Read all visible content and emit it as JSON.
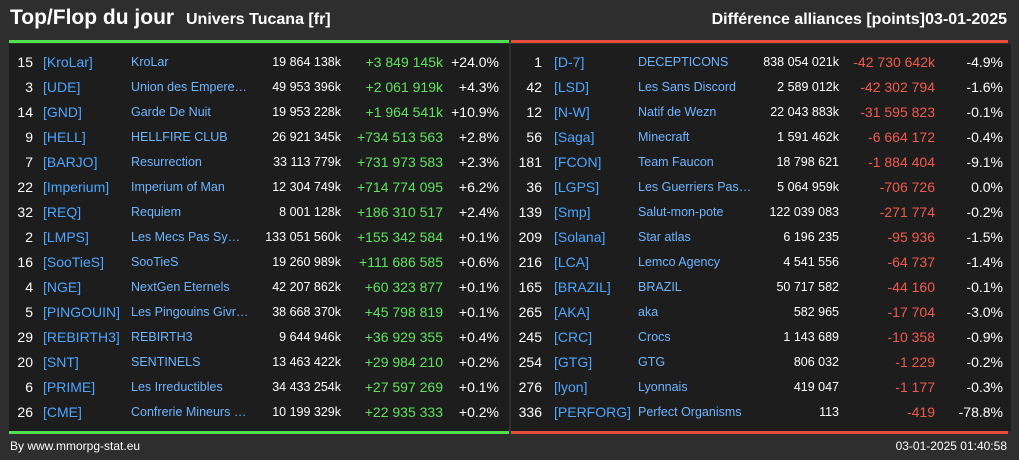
{
  "header": {
    "title": "Top/Flop du jour",
    "universe": "Univers Tucana [fr]",
    "section_title": "Différence alliances [points]",
    "date": "03-01-2025"
  },
  "colors": {
    "positive": "#5fe35f",
    "negative": "#f05a4d",
    "tag": "#4da6ff",
    "top_rule": "#4ee04e",
    "flop_rule": "#e84c3d"
  },
  "top": [
    {
      "rank": "15",
      "tag": "[KroLar]",
      "name": "KroLar",
      "points": "19 864 138k",
      "diff": "+3 849 145k",
      "pct": "+24.0%"
    },
    {
      "rank": "3",
      "tag": "[UDE]",
      "name": "Union des Empereurs",
      "points": "49 953 396k",
      "diff": "+2 061 919k",
      "pct": "+4.3%"
    },
    {
      "rank": "14",
      "tag": "[GND]",
      "name": "Garde De Nuit",
      "points": "19 953 228k",
      "diff": "+1 964 541k",
      "pct": "+10.9%"
    },
    {
      "rank": "9",
      "tag": "[HELL]",
      "name": "HELLFIRE CLUB",
      "points": "26 921 345k",
      "diff": "+734 513 563",
      "pct": "+2.8%"
    },
    {
      "rank": "7",
      "tag": "[BARJO]",
      "name": "Resurrection",
      "points": "33 113 779k",
      "diff": "+731 973 583",
      "pct": "+2.3%"
    },
    {
      "rank": "22",
      "tag": "[Imperium]",
      "name": "Imperium of Man",
      "points": "12 304 749k",
      "diff": "+714 774 095",
      "pct": "+6.2%"
    },
    {
      "rank": "32",
      "tag": "[REQ]",
      "name": "Requiem",
      "points": "8 001 128k",
      "diff": "+186 310 517",
      "pct": "+2.4%"
    },
    {
      "rank": "2",
      "tag": "[LMPS]",
      "name": "Les Mecs Pas Sympas",
      "points": "133 051 560k",
      "diff": "+155 342 584",
      "pct": "+0.1%"
    },
    {
      "rank": "16",
      "tag": "[SooTieS]",
      "name": "SooTieS",
      "points": "19 260 989k",
      "diff": "+111 686 585",
      "pct": "+0.6%"
    },
    {
      "rank": "4",
      "tag": "[NGE]",
      "name": "NextGen Eternels",
      "points": "42 207 862k",
      "diff": "+60 323 877",
      "pct": "+0.1%"
    },
    {
      "rank": "5",
      "tag": "[PINGOUIN]",
      "name": "Les Pingouins Givrés",
      "points": "38 668 370k",
      "diff": "+45 798 819",
      "pct": "+0.1%"
    },
    {
      "rank": "29",
      "tag": "[REBIRTH3]",
      "name": "REBIRTH3",
      "points": "9 644 946k",
      "diff": "+36 929 355",
      "pct": "+0.4%"
    },
    {
      "rank": "20",
      "tag": "[SNT]",
      "name": "SENTINELS",
      "points": "13 463 422k",
      "diff": "+29 984 210",
      "pct": "+0.2%"
    },
    {
      "rank": "6",
      "tag": "[PRIME]",
      "name": "Les Irreductibles",
      "points": "34 433 254k",
      "diff": "+27 597 269",
      "pct": "+0.1%"
    },
    {
      "rank": "26",
      "tag": "[CME]",
      "name": "Confrerie Mineurs Elite",
      "points": "10 199 329k",
      "diff": "+22 935 333",
      "pct": "+0.2%"
    }
  ],
  "flop": [
    {
      "rank": "1",
      "tag": "[D-7]",
      "name": "DECEPTICONS",
      "points": "838 054 021k",
      "diff": "-42 730 642k",
      "pct": "-4.9%"
    },
    {
      "rank": "42",
      "tag": "[LSD]",
      "name": "Les Sans Discord",
      "points": "2 589 012k",
      "diff": "-42 302 794",
      "pct": "-1.6%"
    },
    {
      "rank": "12",
      "tag": "[N-W]",
      "name": "Natif de Wezn",
      "points": "22 043 883k",
      "diff": "-31 595 823",
      "pct": "-0.1%"
    },
    {
      "rank": "56",
      "tag": "[Saga]",
      "name": "Minecraft",
      "points": "1 591 462k",
      "diff": "-6 664 172",
      "pct": "-0.4%"
    },
    {
      "rank": "181",
      "tag": "[FCON]",
      "name": "Team Faucon",
      "points": "18 798 621",
      "diff": "-1 884 404",
      "pct": "-9.1%"
    },
    {
      "rank": "36",
      "tag": "[LGPS]",
      "name": "Les Guerriers Pas Sympas",
      "points": "5 064 959k",
      "diff": "-706 726",
      "pct": "0.0%"
    },
    {
      "rank": "139",
      "tag": "[Smp]",
      "name": "Salut-mon-pote",
      "points": "122 039 083",
      "diff": "-271 774",
      "pct": "-0.2%"
    },
    {
      "rank": "209",
      "tag": "[Solana]",
      "name": "Star atlas",
      "points": "6 196 235",
      "diff": "-95 936",
      "pct": "-1.5%"
    },
    {
      "rank": "216",
      "tag": "[LCA]",
      "name": "Lemco Agency",
      "points": "4 541 556",
      "diff": "-64 737",
      "pct": "-1.4%"
    },
    {
      "rank": "165",
      "tag": "[BRAZIL]",
      "name": "BRAZIL",
      "points": "50 717 582",
      "diff": "-44 160",
      "pct": "-0.1%"
    },
    {
      "rank": "265",
      "tag": "[AKA]",
      "name": "aka",
      "points": "582 965",
      "diff": "-17 704",
      "pct": "-3.0%"
    },
    {
      "rank": "245",
      "tag": "[CRC]",
      "name": "Crocs",
      "points": "1 143 689",
      "diff": "-10 358",
      "pct": "-0.9%"
    },
    {
      "rank": "254",
      "tag": "[GTG]",
      "name": "GTG",
      "points": "806 032",
      "diff": "-1 229",
      "pct": "-0.2%"
    },
    {
      "rank": "276",
      "tag": "[lyon]",
      "name": "Lyonnais",
      "points": "419 047",
      "diff": "-1 177",
      "pct": "-0.3%"
    },
    {
      "rank": "336",
      "tag": "[PERFORG]",
      "name": "Perfect Organisms",
      "points": "113",
      "diff": "-419",
      "pct": "-78.8%"
    }
  ],
  "footer": {
    "credit": "By www.mmorpg-stat.eu",
    "timestamp": "03-01-2025 01:40:58"
  }
}
